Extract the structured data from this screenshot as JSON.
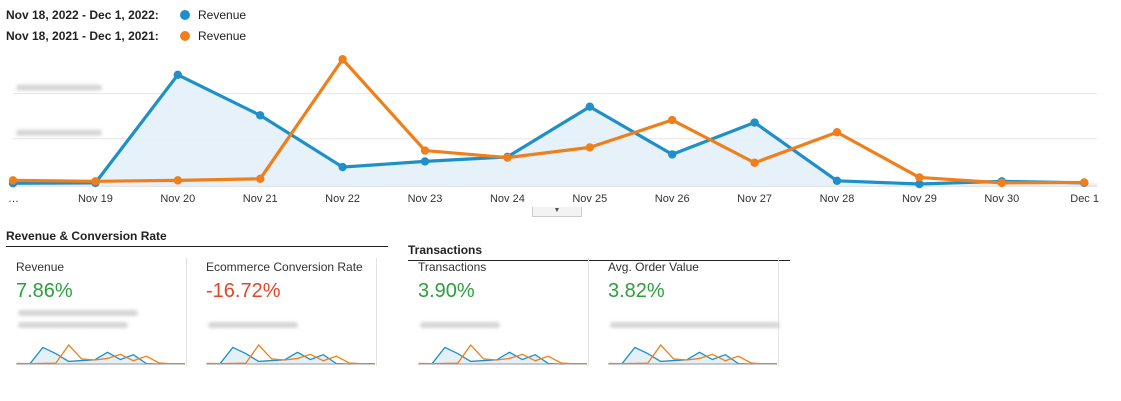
{
  "legend": [
    {
      "range": "Nov 18, 2022 - Dec 1, 2022:",
      "label": "Revenue",
      "color": "#1e8fc9"
    },
    {
      "range": "Nov 18, 2021 - Dec 1, 2021:",
      "label": "Revenue",
      "color": "#ef7f1a"
    }
  ],
  "chart_data": {
    "type": "line",
    "title": "",
    "x_labels": [
      "…",
      "Nov 19",
      "Nov 20",
      "Nov 21",
      "Nov 22",
      "Nov 23",
      "Nov 24",
      "Nov 25",
      "Nov 26",
      "Nov 27",
      "Nov 28",
      "Nov 29",
      "Nov 30",
      "Dec 1"
    ],
    "y_ticks": [
      2,
      4,
      6
    ],
    "ylim": [
      0,
      7
    ],
    "series": [
      {
        "name": "Nov 18, 2022 - Dec 1, 2022: Revenue",
        "color": "#1e8fc9",
        "area": true,
        "values": [
          0.03,
          0.05,
          4.83,
          3.04,
          0.75,
          1.0,
          1.2,
          3.42,
          1.31,
          2.72,
          0.14,
          0.0,
          0.12,
          0.05
        ]
      },
      {
        "name": "Nov 18, 2021 - Dec 1, 2021: Revenue",
        "color": "#ef7f1a",
        "area": false,
        "values": [
          0.16,
          0.12,
          0.16,
          0.23,
          5.52,
          1.48,
          1.17,
          1.62,
          2.83,
          0.94,
          2.29,
          0.29,
          0.05,
          0.07
        ]
      }
    ]
  },
  "sections": {
    "revenue_conversion": "Revenue & Conversion Rate",
    "transactions": "Transactions"
  },
  "cards": [
    {
      "label": "Revenue",
      "value": "7.86%",
      "trend": "pos"
    },
    {
      "label": "Ecommerce Conversion Rate",
      "value": "-16.72%",
      "trend": "neg"
    },
    {
      "label": "Transactions",
      "value": "3.90%",
      "trend": "pos"
    },
    {
      "label": "Avg. Order Value",
      "value": "3.82%",
      "trend": "pos"
    }
  ]
}
